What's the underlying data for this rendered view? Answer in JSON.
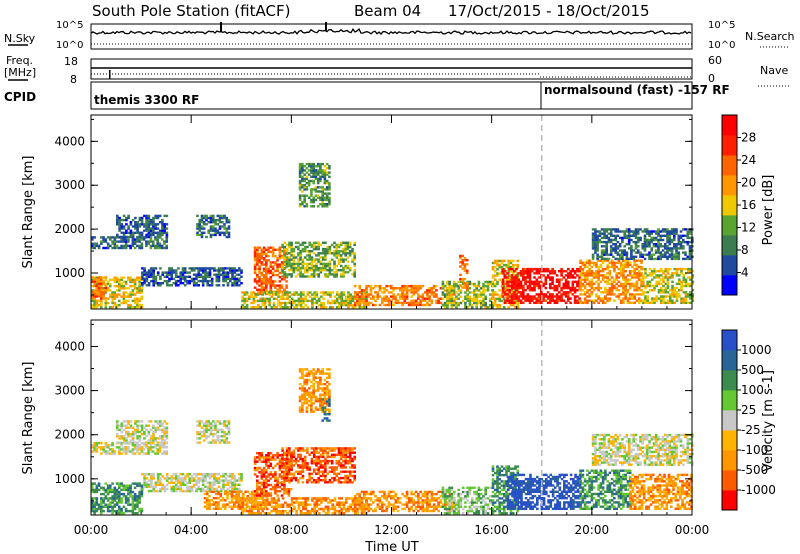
{
  "header": {
    "station": "South Pole Station (fitACF)",
    "beam": "Beam 04",
    "date_range": "17/Oct/2015 - 18/Oct/2015"
  },
  "aux_panels": {
    "nsky_label": "N.Sky",
    "nsky_ticks": [
      "10^5",
      "10^0"
    ],
    "nsearch_label": "N.Search",
    "nsearch_ticks": [
      "10^5",
      "10^0"
    ],
    "freq_label_1": "Freq.",
    "freq_label_2": "[MHz]",
    "freq_ticks": [
      "18",
      "8"
    ],
    "nave_label": "Nave",
    "nave_ticks": [
      "60",
      "0"
    ],
    "cpid_label": "CPID",
    "cpid_1": "themis 3300 RF",
    "cpid_2": "normalsound (fast) -157 RF"
  },
  "colors": {
    "power": [
      "#0000ff",
      "#1f4aa0",
      "#3c7d50",
      "#5aa532",
      "#f0c800",
      "#ff9600",
      "#ff6400",
      "#ff1e00",
      "#ff0000"
    ],
    "velocity": [
      "#ff0000",
      "#ff5a00",
      "#ff9600",
      "#ffb400",
      "#c8c8c8",
      "#64c832",
      "#3c8c50",
      "#286496",
      "#2850c8"
    ]
  },
  "chart_data": [
    {
      "type": "heatmap",
      "name": "power",
      "x": [
        "00:00",
        "04:00",
        "08:00",
        "12:00",
        "16:00",
        "20:00",
        "00:00"
      ],
      "xlabel": "",
      "ylabel": "Slant Range [km]",
      "yticks": [
        "1000",
        "2000",
        "3000",
        "4000"
      ],
      "ylim": [
        180,
        4600
      ],
      "xlim_hours": [
        0,
        24
      ],
      "colorbar_label": "Power [dB]",
      "colorbar_ticks": [
        "4",
        "8",
        "12",
        "16",
        "20",
        "24",
        "28"
      ],
      "clim": [
        0,
        30
      ],
      "cpid_change_hour": 18.0,
      "regions": [
        {
          "t": [
            0.0,
            3.0
          ],
          "r": [
            1550,
            1800
          ],
          "v": 7
        },
        {
          "t": [
            1.0,
            3.0
          ],
          "r": [
            1800,
            2300
          ],
          "v": 6
        },
        {
          "t": [
            4.2,
            5.5
          ],
          "r": [
            1800,
            2300
          ],
          "v": 7
        },
        {
          "t": [
            0.0,
            2.0
          ],
          "r": [
            200,
            900
          ],
          "v": 15
        },
        {
          "t": [
            0.0,
            0.6
          ],
          "r": [
            400,
            900
          ],
          "v": 21
        },
        {
          "t": [
            2.0,
            6.0
          ],
          "r": [
            700,
            1100
          ],
          "v": 6
        },
        {
          "t": [
            6.5,
            7.8
          ],
          "r": [
            500,
            1600
          ],
          "v": 22
        },
        {
          "t": [
            7.6,
            10.5
          ],
          "r": [
            900,
            1700
          ],
          "v": 12
        },
        {
          "t": [
            8.3,
            9.5
          ],
          "r": [
            2500,
            3500
          ],
          "v": 10
        },
        {
          "t": [
            6.0,
            11.0
          ],
          "r": [
            200,
            550
          ],
          "v": 14
        },
        {
          "t": [
            10.5,
            14.5
          ],
          "r": [
            250,
            700
          ],
          "v": 20
        },
        {
          "t": [
            14.0,
            16.0
          ],
          "r": [
            200,
            800
          ],
          "v": 13
        },
        {
          "t": [
            14.7,
            15.0
          ],
          "r": [
            600,
            1400
          ],
          "v": 21
        },
        {
          "t": [
            16.0,
            17.0
          ],
          "r": [
            200,
            1300
          ],
          "v": 15
        },
        {
          "t": [
            16.4,
            19.5
          ],
          "r": [
            300,
            1100
          ],
          "v": 27
        },
        {
          "t": [
            19.5,
            22.0
          ],
          "r": [
            300,
            1300
          ],
          "v": 19
        },
        {
          "t": [
            22.0,
            24.0
          ],
          "r": [
            300,
            1100
          ],
          "v": 14
        },
        {
          "t": [
            20.0,
            24.0
          ],
          "r": [
            1300,
            2000
          ],
          "v": 7
        }
      ]
    },
    {
      "type": "heatmap",
      "name": "velocity",
      "x": [
        "00:00",
        "04:00",
        "08:00",
        "12:00",
        "16:00",
        "20:00",
        "00:00"
      ],
      "xlabel": "Time UT",
      "ylabel": "Slant Range [km]",
      "yticks": [
        "1000",
        "2000",
        "3000",
        "4000"
      ],
      "ylim": [
        180,
        4600
      ],
      "xlim_hours": [
        0,
        24
      ],
      "colorbar_label": "Velocity [m s-1]",
      "colorbar_ticks": [
        "-1000",
        "-500",
        "-100",
        "-25",
        "25",
        "100",
        "500",
        "1000"
      ],
      "clim_index": [
        0,
        9
      ],
      "cpid_change_hour": 18.0,
      "regions": [
        {
          "t": [
            0.0,
            3.0
          ],
          "r": [
            1550,
            1800
          ],
          "v": 4.5
        },
        {
          "t": [
            1.0,
            3.0
          ],
          "r": [
            1800,
            2300
          ],
          "v": 4.5
        },
        {
          "t": [
            4.2,
            5.5
          ],
          "r": [
            1800,
            2300
          ],
          "v": 4.5
        },
        {
          "t": [
            0.0,
            2.0
          ],
          "r": [
            200,
            900
          ],
          "v": 6.5
        },
        {
          "t": [
            2.0,
            6.0
          ],
          "r": [
            700,
            1100
          ],
          "v": 4.5
        },
        {
          "t": [
            4.5,
            7.0
          ],
          "r": [
            300,
            700
          ],
          "v": 2.5
        },
        {
          "t": [
            6.5,
            8.0
          ],
          "r": [
            600,
            1600
          ],
          "v": 1.5
        },
        {
          "t": [
            7.6,
            10.5
          ],
          "r": [
            900,
            1700
          ],
          "v": 1.5
        },
        {
          "t": [
            8.3,
            9.5
          ],
          "r": [
            2500,
            3500
          ],
          "v": 2.5
        },
        {
          "t": [
            9.2,
            9.5
          ],
          "r": [
            2300,
            2800
          ],
          "v": 7.5
        },
        {
          "t": [
            6.0,
            11.0
          ],
          "r": [
            200,
            550
          ],
          "v": 2.5
        },
        {
          "t": [
            10.5,
            14.5
          ],
          "r": [
            250,
            700
          ],
          "v": 2.5
        },
        {
          "t": [
            14.0,
            16.0
          ],
          "r": [
            200,
            800
          ],
          "v": 5.5
        },
        {
          "t": [
            16.0,
            17.0
          ],
          "r": [
            200,
            1300
          ],
          "v": 6.5
        },
        {
          "t": [
            16.6,
            19.5
          ],
          "r": [
            300,
            1100
          ],
          "v": 8.5
        },
        {
          "t": [
            19.5,
            21.5
          ],
          "r": [
            300,
            1200
          ],
          "v": 6.5
        },
        {
          "t": [
            21.5,
            24.0
          ],
          "r": [
            300,
            1100
          ],
          "v": 2.5
        },
        {
          "t": [
            20.0,
            24.0
          ],
          "r": [
            1300,
            2000
          ],
          "v": 4.5
        }
      ]
    }
  ]
}
